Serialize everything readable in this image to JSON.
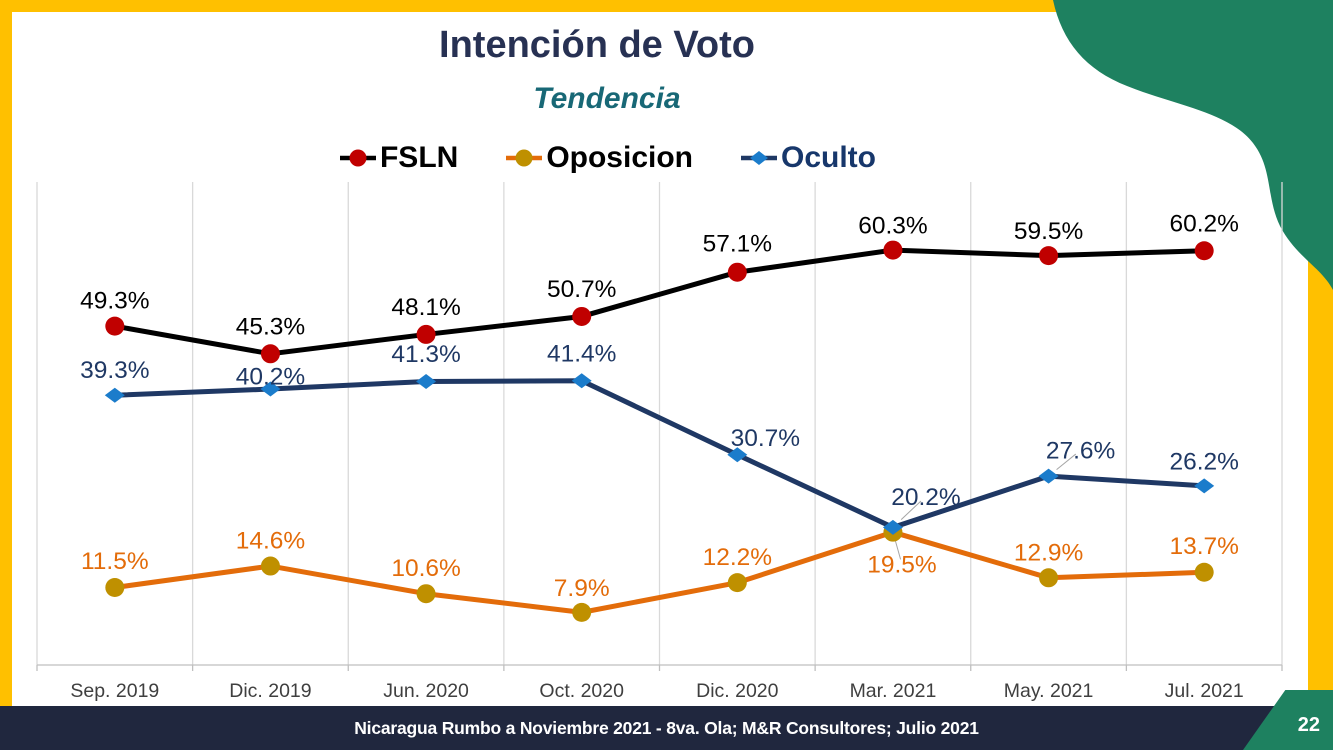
{
  "header": {
    "title": "Intención de Voto",
    "subtitle": "Tendencia"
  },
  "chart_data": {
    "type": "line",
    "title": "Intención de Voto - Tendencia",
    "categories": [
      "Sep. 2019",
      "Dic. 2019",
      "Jun. 2020",
      "Oct. 2020",
      "Dic. 2020",
      "Mar. 2021",
      "May. 2021",
      "Jul. 2021"
    ],
    "ylim": [
      0,
      70
    ],
    "grid": "vertical-only",
    "legend_position": "top",
    "series": [
      {
        "name": "Oposicion",
        "marker": "circle",
        "line_color": "#E36C0A",
        "marker_color": "#BF9000",
        "label_color": "#E36C0A",
        "values": [
          11.5,
          14.6,
          10.6,
          7.9,
          12.2,
          19.5,
          12.9,
          13.7
        ],
        "labels": [
          "11.5%",
          "14.6%",
          "10.6%",
          "7.9%",
          "12.2%",
          "19.5%",
          "12.9%",
          "13.7%"
        ],
        "label_offsets": [
          [
            0,
            -27
          ],
          [
            0,
            -26
          ],
          [
            0,
            -26
          ],
          [
            0,
            -25
          ],
          [
            0,
            -26
          ],
          [
            9,
            32
          ],
          [
            0,
            -26
          ],
          [
            0,
            -27
          ]
        ],
        "leader_points": [
          5
        ]
      },
      {
        "name": "Oculto",
        "marker": "diamond",
        "line_color": "#1F3864",
        "marker_color": "#1B7CCB",
        "label_color": "#1F3864",
        "values": [
          39.3,
          40.2,
          41.3,
          41.4,
          30.7,
          20.2,
          27.6,
          26.2
        ],
        "labels": [
          "39.3%",
          "40.2%",
          "41.3%",
          "41.4%",
          "30.7%",
          "20.2%",
          "27.6%",
          "26.2%"
        ],
        "label_offsets": [
          [
            0,
            -26
          ],
          [
            0,
            -13
          ],
          [
            0,
            -28
          ],
          [
            0,
            -28
          ],
          [
            28,
            -17
          ],
          [
            33,
            -31
          ],
          [
            32,
            -26
          ],
          [
            0,
            -25
          ]
        ],
        "leader_points": [
          5,
          6
        ]
      },
      {
        "name": "FSLN",
        "marker": "circle",
        "line_color": "#000000",
        "marker_color": "#C00000",
        "label_color": "#000000",
        "values": [
          49.3,
          45.3,
          48.1,
          50.7,
          57.1,
          60.3,
          59.5,
          60.2
        ],
        "labels": [
          "49.3%",
          "45.3%",
          "48.1%",
          "50.7%",
          "57.1%",
          "60.3%",
          "59.5%",
          "60.2%"
        ],
        "label_offsets": [
          [
            0,
            -26
          ],
          [
            0,
            -28
          ],
          [
            0,
            -28
          ],
          [
            0,
            -28
          ],
          [
            0,
            -29
          ],
          [
            0,
            -25
          ],
          [
            0,
            -25
          ],
          [
            0,
            -28
          ]
        ],
        "leader_points": []
      }
    ],
    "legend_order": [
      "FSLN",
      "Oposicion",
      "Oculto"
    ],
    "legend_text_colors": {
      "FSLN": "#000000",
      "Oposicion": "#000000",
      "Oculto": "#17376B"
    }
  },
  "footer": {
    "text": "Nicaragua Rumbo a Noviembre 2021 -  8va. Ola; M&R Consultores; Julio 2021",
    "page_number": "22"
  },
  "colors": {
    "frame_yellow": "#FFC000",
    "decoration_green": "#1E8160",
    "footer_navy": "#20273E",
    "title_navy": "#273153",
    "subtitle_teal": "#186876",
    "gridline_gray": "#D9D9D9",
    "axis_gray": "#BFBFBF",
    "axis_label_gray": "#3F3F3F"
  }
}
